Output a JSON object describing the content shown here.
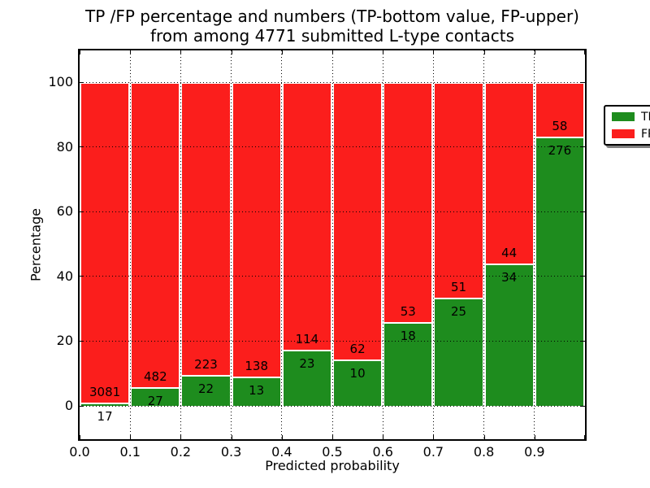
{
  "figure": {
    "title_line1": "TP /FP percentage and numbers (TP-bottom value, FP-upper)",
    "title_line2": "from among 4771 submitted L-type contacts",
    "xlabel": "Predicted probability",
    "ylabel": "Percentage"
  },
  "legend": {
    "items": [
      {
        "label": "TP",
        "color": "#1e8c1e"
      },
      {
        "label": "FP",
        "color": "#fb1e1c"
      }
    ]
  },
  "chart_data": {
    "type": "bar",
    "stacked": true,
    "normalized_to_percent": true,
    "title": "TP /FP percentage and numbers (TP-bottom value, FP-upper) from among 4771 submitted L-type contacts",
    "xlabel": "Predicted probability",
    "ylabel": "Percentage",
    "total_contacts": 4771,
    "bin_edges": [
      0.0,
      0.1,
      0.2,
      0.3,
      0.4,
      0.5,
      0.6,
      0.7,
      0.8,
      0.9,
      1.0
    ],
    "categories": [
      "0.0-0.1",
      "0.1-0.2",
      "0.2-0.3",
      "0.3-0.4",
      "0.4-0.5",
      "0.5-0.6",
      "0.6-0.7",
      "0.7-0.8",
      "0.8-0.9",
      "0.9-1.0"
    ],
    "series": [
      {
        "name": "TP",
        "color": "#1e8c1e",
        "counts": [
          17,
          27,
          22,
          13,
          23,
          10,
          18,
          25,
          34,
          276
        ]
      },
      {
        "name": "FP",
        "color": "#fb1e1c",
        "counts": [
          3081,
          482,
          223,
          138,
          114,
          62,
          53,
          51,
          44,
          58
        ]
      }
    ],
    "bar_total_percent": 100,
    "xtick_labels": [
      "0.0",
      "0.1",
      "0.2",
      "0.3",
      "0.4",
      "0.5",
      "0.6",
      "0.7",
      "0.8",
      "0.9"
    ],
    "ytick_values": [
      0,
      20,
      40,
      60,
      80,
      100
    ],
    "ylim": [
      -10.3,
      110.1
    ],
    "xlim": [
      0.0,
      1.0
    ],
    "grid": "dotted",
    "legend_position": "upper right"
  }
}
